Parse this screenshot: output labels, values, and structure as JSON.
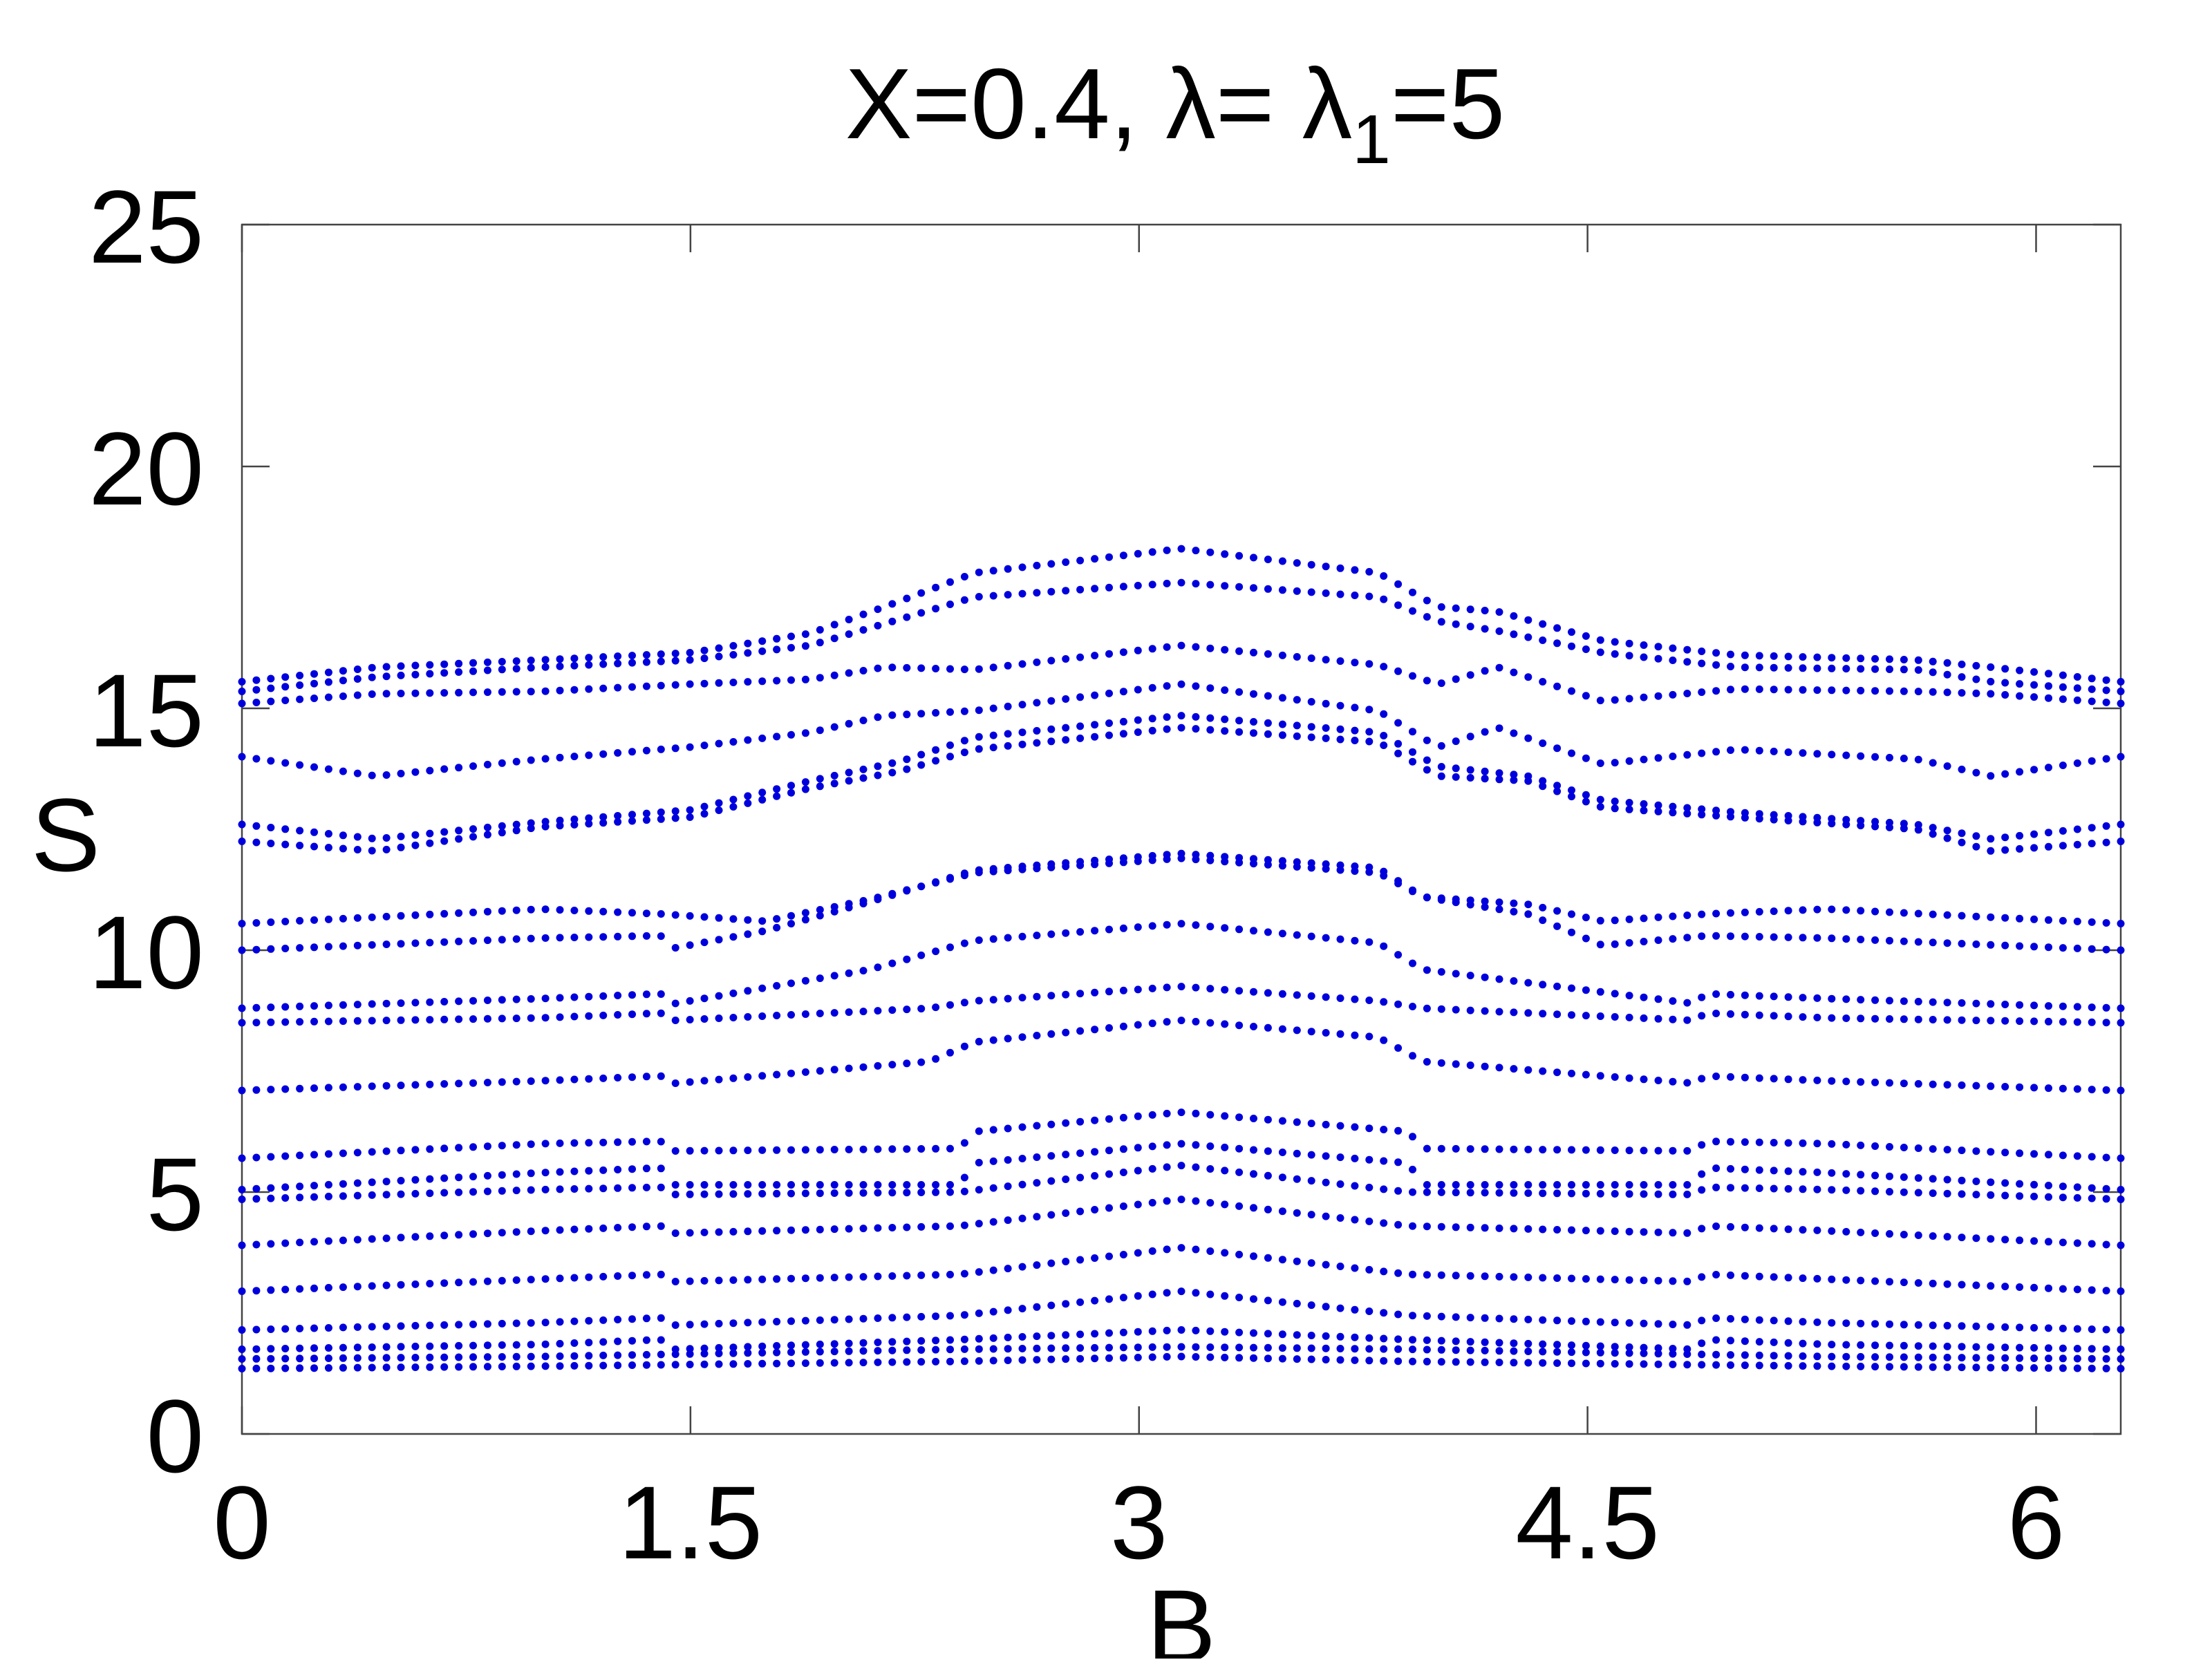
{
  "chart_data": {
    "type": "scatter",
    "title": {
      "prefix": "X=0.4, λ= λ",
      "subscript": "1",
      "suffix": "=5"
    },
    "xlabel": "B",
    "ylabel": "S",
    "xlim": [
      0,
      6.2832
    ],
    "ylim": [
      0,
      25
    ],
    "xticks": [
      {
        "value": 0,
        "label": "0"
      },
      {
        "value": 1.5,
        "label": "1.5"
      },
      {
        "value": 3,
        "label": "3"
      },
      {
        "value": 4.5,
        "label": "4.5"
      },
      {
        "value": 6,
        "label": "6"
      }
    ],
    "yticks": [
      {
        "value": 0,
        "label": "0"
      },
      {
        "value": 5,
        "label": "5"
      },
      {
        "value": 10,
        "label": "10"
      },
      {
        "value": 15,
        "label": "15"
      },
      {
        "value": 20,
        "label": "20"
      },
      {
        "value": 25,
        "label": "25"
      }
    ],
    "grid": false,
    "marker_color": "#0000dd",
    "series": [
      {
        "values": [
          [
            0,
            1.35
          ],
          [
            1.0,
            1.4
          ],
          [
            2.4,
            1.5
          ],
          [
            3.14,
            1.6
          ],
          [
            3.9,
            1.5
          ],
          [
            5.3,
            1.4
          ],
          [
            6.2832,
            1.35
          ]
        ]
      },
      {
        "values": [
          [
            0,
            1.55
          ],
          [
            1.0,
            1.6
          ],
          [
            2.4,
            1.75
          ],
          [
            3.14,
            1.8
          ],
          [
            3.9,
            1.75
          ],
          [
            5.3,
            1.6
          ],
          [
            6.2832,
            1.55
          ]
        ]
      },
      {
        "values": [
          [
            0,
            1.75
          ],
          [
            1.0,
            1.85
          ],
          [
            1.4,
            1.95
          ],
          [
            1.45,
            1.75
          ],
          [
            2.4,
            1.95
          ],
          [
            3.14,
            2.15
          ],
          [
            3.9,
            1.95
          ],
          [
            4.85,
            1.75
          ],
          [
            4.9,
            1.95
          ],
          [
            5.3,
            1.85
          ],
          [
            6.2832,
            1.75
          ]
        ]
      },
      {
        "values": [
          [
            0,
            2.15
          ],
          [
            1.0,
            2.3
          ],
          [
            1.4,
            2.4
          ],
          [
            1.45,
            2.25
          ],
          [
            2.4,
            2.45
          ],
          [
            3.14,
            2.95
          ],
          [
            3.9,
            2.45
          ],
          [
            4.85,
            2.25
          ],
          [
            4.9,
            2.4
          ],
          [
            5.3,
            2.3
          ],
          [
            6.2832,
            2.15
          ]
        ]
      },
      {
        "values": [
          [
            0,
            2.95
          ],
          [
            1.0,
            3.2
          ],
          [
            1.4,
            3.3
          ],
          [
            1.45,
            3.15
          ],
          [
            2.4,
            3.3
          ],
          [
            3.14,
            3.85
          ],
          [
            3.9,
            3.3
          ],
          [
            4.85,
            3.15
          ],
          [
            4.9,
            3.3
          ],
          [
            5.3,
            3.2
          ],
          [
            6.2832,
            2.95
          ]
        ]
      },
      {
        "values": [
          [
            0,
            3.9
          ],
          [
            1.0,
            4.2
          ],
          [
            1.4,
            4.3
          ],
          [
            1.45,
            4.15
          ],
          [
            2.4,
            4.3
          ],
          [
            3.14,
            4.85
          ],
          [
            3.9,
            4.3
          ],
          [
            4.85,
            4.15
          ],
          [
            4.9,
            4.3
          ],
          [
            5.3,
            4.2
          ],
          [
            6.2832,
            3.9
          ]
        ]
      },
      {
        "values": [
          [
            0,
            4.85
          ],
          [
            1.0,
            5.05
          ],
          [
            1.4,
            5.1
          ],
          [
            1.45,
            4.95
          ],
          [
            2.4,
            5.0
          ],
          [
            3.14,
            5.55
          ],
          [
            3.9,
            5.0
          ],
          [
            4.85,
            4.95
          ],
          [
            4.9,
            5.1
          ],
          [
            5.3,
            5.05
          ],
          [
            6.2832,
            4.85
          ]
        ]
      },
      {
        "values": [
          [
            0,
            5.05
          ],
          [
            1.0,
            5.4
          ],
          [
            1.4,
            5.5
          ],
          [
            1.45,
            5.15
          ],
          [
            2.4,
            5.15
          ],
          [
            2.45,
            5.6
          ],
          [
            3.14,
            6.0
          ],
          [
            3.9,
            5.6
          ],
          [
            3.95,
            5.15
          ],
          [
            4.85,
            5.15
          ],
          [
            4.9,
            5.5
          ],
          [
            5.3,
            5.4
          ],
          [
            6.2832,
            5.05
          ]
        ]
      },
      {
        "values": [
          [
            0,
            5.7
          ],
          [
            1.0,
            6.0
          ],
          [
            1.4,
            6.05
          ],
          [
            1.45,
            5.85
          ],
          [
            2.4,
            5.9
          ],
          [
            2.45,
            6.25
          ],
          [
            3.14,
            6.65
          ],
          [
            3.9,
            6.25
          ],
          [
            3.95,
            5.9
          ],
          [
            4.85,
            5.85
          ],
          [
            4.9,
            6.05
          ],
          [
            5.3,
            6.0
          ],
          [
            6.2832,
            5.7
          ]
        ]
      },
      {
        "values": [
          [
            0,
            7.1
          ],
          [
            1.0,
            7.3
          ],
          [
            1.4,
            7.4
          ],
          [
            1.45,
            7.25
          ],
          [
            2.3,
            7.7
          ],
          [
            2.45,
            8.1
          ],
          [
            3.14,
            8.55
          ],
          [
            3.8,
            8.2
          ],
          [
            3.95,
            7.7
          ],
          [
            4.85,
            7.25
          ],
          [
            4.9,
            7.4
          ],
          [
            5.3,
            7.3
          ],
          [
            6.2832,
            7.1
          ]
        ]
      },
      {
        "values": [
          [
            0,
            8.5
          ],
          [
            1.0,
            8.6
          ],
          [
            1.4,
            8.7
          ],
          [
            1.45,
            8.55
          ],
          [
            2.3,
            8.8
          ],
          [
            2.45,
            8.95
          ],
          [
            3.14,
            9.25
          ],
          [
            3.8,
            8.95
          ],
          [
            3.95,
            8.8
          ],
          [
            4.85,
            8.55
          ],
          [
            4.9,
            8.7
          ],
          [
            5.3,
            8.6
          ],
          [
            6.2832,
            8.5
          ]
        ]
      },
      {
        "values": [
          [
            0,
            8.8
          ],
          [
            1.0,
            9.0
          ],
          [
            1.4,
            9.1
          ],
          [
            1.45,
            8.9
          ],
          [
            2.1,
            9.6
          ],
          [
            2.45,
            10.2
          ],
          [
            3.14,
            10.55
          ],
          [
            3.8,
            10.15
          ],
          [
            3.95,
            9.6
          ],
          [
            4.85,
            8.9
          ],
          [
            4.9,
            9.1
          ],
          [
            5.3,
            9.0
          ],
          [
            6.2832,
            8.8
          ]
        ]
      },
      {
        "values": [
          [
            0,
            10.0
          ],
          [
            1.0,
            10.25
          ],
          [
            1.4,
            10.3
          ],
          [
            1.45,
            10.05
          ],
          [
            1.75,
            10.4
          ],
          [
            2.1,
            11.0
          ],
          [
            2.45,
            11.65
          ],
          [
            3.14,
            12.0
          ],
          [
            3.8,
            11.7
          ],
          [
            3.95,
            11.1
          ],
          [
            4.3,
            10.75
          ],
          [
            4.55,
            10.1
          ],
          [
            4.9,
            10.3
          ],
          [
            5.3,
            10.25
          ],
          [
            6.2832,
            10.0
          ]
        ]
      },
      {
        "values": [
          [
            0,
            10.55
          ],
          [
            1.0,
            10.85
          ],
          [
            1.4,
            10.75
          ],
          [
            1.75,
            10.6
          ],
          [
            2.1,
            11.05
          ],
          [
            2.45,
            11.6
          ],
          [
            3.14,
            11.9
          ],
          [
            3.8,
            11.6
          ],
          [
            3.95,
            11.1
          ],
          [
            4.3,
            10.95
          ],
          [
            4.55,
            10.6
          ],
          [
            4.9,
            10.75
          ],
          [
            5.3,
            10.85
          ],
          [
            6.2832,
            10.55
          ]
        ]
      },
      {
        "values": [
          [
            0,
            12.25
          ],
          [
            0.45,
            12.05
          ],
          [
            1.0,
            12.55
          ],
          [
            1.5,
            12.75
          ],
          [
            1.9,
            13.35
          ],
          [
            2.2,
            13.7
          ],
          [
            2.45,
            14.15
          ],
          [
            3.14,
            14.6
          ],
          [
            3.8,
            14.3
          ],
          [
            4.0,
            13.6
          ],
          [
            4.3,
            13.5
          ],
          [
            4.55,
            12.95
          ],
          [
            5.0,
            12.75
          ],
          [
            5.6,
            12.5
          ],
          [
            5.85,
            12.05
          ],
          [
            6.2832,
            12.25
          ]
        ]
      },
      {
        "values": [
          [
            0,
            12.6
          ],
          [
            0.45,
            12.3
          ],
          [
            1.0,
            12.65
          ],
          [
            1.5,
            12.9
          ],
          [
            1.9,
            13.5
          ],
          [
            2.2,
            13.9
          ],
          [
            2.45,
            14.4
          ],
          [
            3.14,
            14.85
          ],
          [
            3.8,
            14.5
          ],
          [
            4.0,
            13.8
          ],
          [
            4.3,
            13.6
          ],
          [
            4.55,
            13.1
          ],
          [
            5.0,
            12.85
          ],
          [
            5.6,
            12.6
          ],
          [
            5.85,
            12.3
          ],
          [
            6.2832,
            12.6
          ]
        ]
      },
      {
        "values": [
          [
            0,
            14.0
          ],
          [
            0.45,
            13.6
          ],
          [
            1.0,
            13.95
          ],
          [
            1.5,
            14.2
          ],
          [
            1.9,
            14.5
          ],
          [
            2.15,
            14.85
          ],
          [
            2.45,
            14.95
          ],
          [
            3.14,
            15.5
          ],
          [
            3.8,
            14.95
          ],
          [
            4.0,
            14.2
          ],
          [
            4.2,
            14.6
          ],
          [
            4.55,
            13.85
          ],
          [
            5.0,
            14.15
          ],
          [
            5.6,
            13.95
          ],
          [
            5.85,
            13.6
          ],
          [
            6.2832,
            14.0
          ]
        ]
      },
      {
        "values": [
          [
            0,
            15.1
          ],
          [
            0.45,
            15.3
          ],
          [
            1.0,
            15.35
          ],
          [
            1.5,
            15.5
          ],
          [
            1.9,
            15.6
          ],
          [
            2.15,
            15.85
          ],
          [
            2.45,
            15.8
          ],
          [
            3.14,
            16.3
          ],
          [
            3.8,
            15.9
          ],
          [
            4.0,
            15.5
          ],
          [
            4.2,
            15.85
          ],
          [
            4.55,
            15.15
          ],
          [
            5.0,
            15.4
          ],
          [
            5.6,
            15.35
          ],
          [
            5.85,
            15.3
          ],
          [
            6.2832,
            15.1
          ]
        ]
      },
      {
        "values": [
          [
            0,
            15.35
          ],
          [
            0.45,
            15.65
          ],
          [
            1.0,
            15.85
          ],
          [
            1.5,
            16.0
          ],
          [
            1.9,
            16.3
          ],
          [
            2.15,
            16.75
          ],
          [
            2.45,
            17.3
          ],
          [
            3.14,
            17.6
          ],
          [
            3.8,
            17.3
          ],
          [
            4.0,
            16.8
          ],
          [
            4.2,
            16.6
          ],
          [
            4.55,
            16.15
          ],
          [
            5.0,
            15.85
          ],
          [
            5.6,
            15.8
          ],
          [
            5.85,
            15.55
          ],
          [
            6.2832,
            15.35
          ]
        ]
      },
      {
        "values": [
          [
            0,
            15.55
          ],
          [
            0.45,
            15.85
          ],
          [
            1.0,
            16.0
          ],
          [
            1.5,
            16.15
          ],
          [
            1.9,
            16.55
          ],
          [
            2.15,
            17.1
          ],
          [
            2.45,
            17.8
          ],
          [
            3.14,
            18.3
          ],
          [
            3.8,
            17.8
          ],
          [
            4.0,
            17.1
          ],
          [
            4.2,
            17.0
          ],
          [
            4.55,
            16.4
          ],
          [
            5.0,
            16.1
          ],
          [
            5.6,
            16.0
          ],
          [
            5.85,
            15.85
          ],
          [
            6.2832,
            15.55
          ]
        ]
      }
    ]
  }
}
